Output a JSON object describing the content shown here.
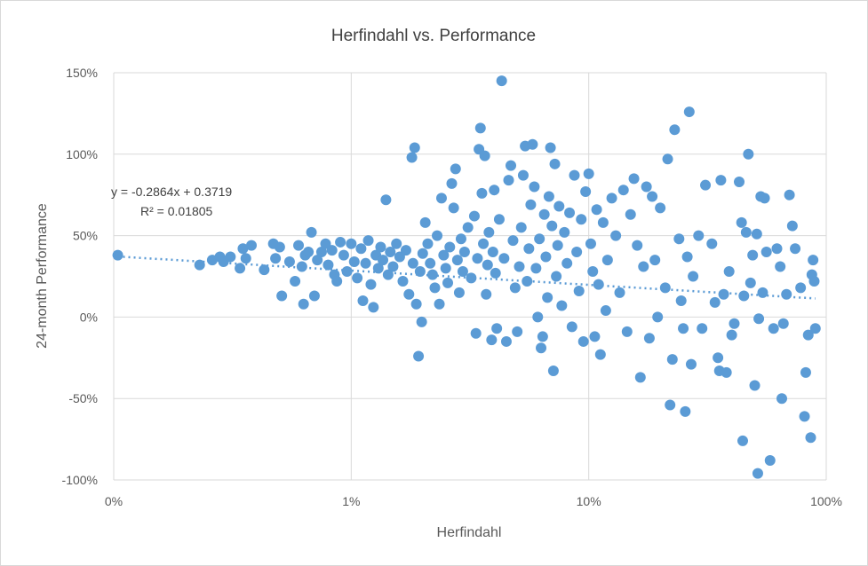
{
  "chart_data": {
    "type": "scatter",
    "title": "Herfindahl vs. Performance",
    "xlabel": "Herfindahl",
    "ylabel": "24-month Performance",
    "x_scale": "log",
    "xlim": [
      0.001,
      1
    ],
    "ylim": [
      -1,
      1.5
    ],
    "x_ticks": [
      0.001,
      0.01,
      0.1,
      1
    ],
    "x_tick_labels": [
      "0%",
      "1%",
      "10%",
      "100%"
    ],
    "y_ticks": [
      -1,
      -0.5,
      0,
      0.5,
      1,
      1.5
    ],
    "y_tick_labels": [
      "-100%",
      "-50%",
      "0%",
      "50%",
      "100%",
      "150%"
    ],
    "grid": true,
    "legend": "none",
    "colors": {
      "points": "#5b9bd5",
      "trendline": "#5b9bd5"
    },
    "trendline": {
      "type": "linear",
      "slope": -0.2864,
      "intercept": 0.3719,
      "equation": "y = -0.2864x + 0.3719",
      "r_squared": "R² = 0.01805"
    },
    "series": [
      {
        "points": [
          [
            0.00104,
            0.38
          ],
          [
            0.0023,
            0.32
          ],
          [
            0.0026,
            0.35
          ],
          [
            0.0028,
            0.37
          ],
          [
            0.0029,
            0.34
          ],
          [
            0.0031,
            0.37
          ],
          [
            0.0034,
            0.3
          ],
          [
            0.0035,
            0.42
          ],
          [
            0.0036,
            0.36
          ],
          [
            0.0038,
            0.44
          ],
          [
            0.0043,
            0.29
          ],
          [
            0.0047,
            0.45
          ],
          [
            0.0048,
            0.36
          ],
          [
            0.005,
            0.43
          ],
          [
            0.0051,
            0.13
          ],
          [
            0.0055,
            0.34
          ],
          [
            0.0058,
            0.22
          ],
          [
            0.006,
            0.44
          ],
          [
            0.0062,
            0.31
          ],
          [
            0.0063,
            0.08
          ],
          [
            0.0064,
            0.38
          ],
          [
            0.0066,
            0.4
          ],
          [
            0.0068,
            0.52
          ],
          [
            0.007,
            0.13
          ],
          [
            0.0072,
            0.35
          ],
          [
            0.0075,
            0.4
          ],
          [
            0.0078,
            0.45
          ],
          [
            0.008,
            0.32
          ],
          [
            0.0083,
            0.41
          ],
          [
            0.0085,
            0.26
          ],
          [
            0.0087,
            0.22
          ],
          [
            0.009,
            0.46
          ],
          [
            0.0093,
            0.38
          ],
          [
            0.0096,
            0.28
          ],
          [
            0.01,
            0.45
          ],
          [
            0.0103,
            0.34
          ],
          [
            0.0106,
            0.24
          ],
          [
            0.011,
            0.42
          ],
          [
            0.0112,
            0.1
          ],
          [
            0.0115,
            0.33
          ],
          [
            0.0118,
            0.47
          ],
          [
            0.0121,
            0.2
          ],
          [
            0.0124,
            0.06
          ],
          [
            0.0127,
            0.38
          ],
          [
            0.013,
            0.3
          ],
          [
            0.0133,
            0.43
          ],
          [
            0.0136,
            0.35
          ],
          [
            0.014,
            0.72
          ],
          [
            0.0143,
            0.26
          ],
          [
            0.0146,
            0.4
          ],
          [
            0.015,
            0.31
          ],
          [
            0.0155,
            0.45
          ],
          [
            0.016,
            0.37
          ],
          [
            0.0165,
            0.22
          ],
          [
            0.017,
            0.41
          ],
          [
            0.0175,
            0.14
          ],
          [
            0.018,
            0.98
          ],
          [
            0.0182,
            0.33
          ],
          [
            0.0185,
            1.04
          ],
          [
            0.0188,
            0.08
          ],
          [
            0.0192,
            -0.24
          ],
          [
            0.0195,
            0.28
          ],
          [
            0.0198,
            -0.03
          ],
          [
            0.02,
            0.39
          ],
          [
            0.0205,
            0.58
          ],
          [
            0.021,
            0.45
          ],
          [
            0.0215,
            0.33
          ],
          [
            0.022,
            0.26
          ],
          [
            0.0225,
            0.18
          ],
          [
            0.023,
            0.5
          ],
          [
            0.0235,
            0.08
          ],
          [
            0.024,
            0.73
          ],
          [
            0.0245,
            0.38
          ],
          [
            0.025,
            0.3
          ],
          [
            0.0255,
            0.21
          ],
          [
            0.026,
            0.43
          ],
          [
            0.0265,
            0.82
          ],
          [
            0.027,
            0.67
          ],
          [
            0.0275,
            0.91
          ],
          [
            0.028,
            0.35
          ],
          [
            0.0285,
            0.15
          ],
          [
            0.029,
            0.48
          ],
          [
            0.0295,
            0.28
          ],
          [
            0.03,
            0.4
          ],
          [
            0.031,
            0.55
          ],
          [
            0.032,
            0.24
          ],
          [
            0.033,
            0.62
          ],
          [
            0.0335,
            -0.1
          ],
          [
            0.034,
            0.36
          ],
          [
            0.0345,
            1.03
          ],
          [
            0.035,
            1.16
          ],
          [
            0.0355,
            0.76
          ],
          [
            0.036,
            0.45
          ],
          [
            0.0365,
            0.99
          ],
          [
            0.037,
            0.14
          ],
          [
            0.0375,
            0.32
          ],
          [
            0.038,
            0.52
          ],
          [
            0.039,
            -0.14
          ],
          [
            0.0395,
            0.4
          ],
          [
            0.04,
            0.78
          ],
          [
            0.0405,
            0.27
          ],
          [
            0.041,
            -0.07
          ],
          [
            0.042,
            0.6
          ],
          [
            0.043,
            1.45
          ],
          [
            0.044,
            0.36
          ],
          [
            0.045,
            -0.15
          ],
          [
            0.046,
            0.84
          ],
          [
            0.047,
            0.93
          ],
          [
            0.048,
            0.47
          ],
          [
            0.049,
            0.18
          ],
          [
            0.05,
            -0.09
          ],
          [
            0.051,
            0.31
          ],
          [
            0.052,
            0.55
          ],
          [
            0.053,
            0.87
          ],
          [
            0.054,
            1.05
          ],
          [
            0.055,
            0.22
          ],
          [
            0.056,
            0.42
          ],
          [
            0.057,
            0.69
          ],
          [
            0.058,
            1.06
          ],
          [
            0.059,
            0.8
          ],
          [
            0.06,
            0.3
          ],
          [
            0.061,
            0.0
          ],
          [
            0.062,
            0.48
          ],
          [
            0.063,
            -0.19
          ],
          [
            0.064,
            -0.12
          ],
          [
            0.065,
            0.63
          ],
          [
            0.066,
            0.37
          ],
          [
            0.067,
            0.12
          ],
          [
            0.068,
            0.74
          ],
          [
            0.069,
            1.04
          ],
          [
            0.07,
            0.56
          ],
          [
            0.071,
            -0.33
          ],
          [
            0.072,
            0.94
          ],
          [
            0.073,
            0.25
          ],
          [
            0.074,
            0.44
          ],
          [
            0.075,
            0.68
          ],
          [
            0.077,
            0.07
          ],
          [
            0.079,
            0.52
          ],
          [
            0.081,
            0.33
          ],
          [
            0.083,
            0.64
          ],
          [
            0.085,
            -0.06
          ],
          [
            0.087,
            0.87
          ],
          [
            0.089,
            0.4
          ],
          [
            0.091,
            0.16
          ],
          [
            0.093,
            0.6
          ],
          [
            0.095,
            -0.15
          ],
          [
            0.097,
            0.77
          ],
          [
            0.1,
            0.88
          ],
          [
            0.102,
            0.45
          ],
          [
            0.104,
            0.28
          ],
          [
            0.106,
            -0.12
          ],
          [
            0.108,
            0.66
          ],
          [
            0.11,
            0.2
          ],
          [
            0.112,
            -0.23
          ],
          [
            0.115,
            0.58
          ],
          [
            0.118,
            0.04
          ],
          [
            0.12,
            0.35
          ],
          [
            0.125,
            0.73
          ],
          [
            0.13,
            0.5
          ],
          [
            0.135,
            0.15
          ],
          [
            0.14,
            0.78
          ],
          [
            0.145,
            -0.09
          ],
          [
            0.15,
            0.63
          ],
          [
            0.155,
            0.85
          ],
          [
            0.16,
            0.44
          ],
          [
            0.165,
            -0.37
          ],
          [
            0.17,
            0.31
          ],
          [
            0.175,
            0.8
          ],
          [
            0.18,
            -0.13
          ],
          [
            0.185,
            0.74
          ],
          [
            0.19,
            0.35
          ],
          [
            0.195,
            0.0
          ],
          [
            0.2,
            0.67
          ],
          [
            0.21,
            0.18
          ],
          [
            0.215,
            0.97
          ],
          [
            0.22,
            -0.54
          ],
          [
            0.225,
            -0.26
          ],
          [
            0.23,
            1.15
          ],
          [
            0.24,
            0.48
          ],
          [
            0.245,
            0.1
          ],
          [
            0.25,
            -0.07
          ],
          [
            0.255,
            -0.58
          ],
          [
            0.26,
            0.37
          ],
          [
            0.265,
            1.26
          ],
          [
            0.27,
            -0.29
          ],
          [
            0.275,
            0.25
          ],
          [
            0.29,
            0.5
          ],
          [
            0.3,
            -0.07
          ],
          [
            0.31,
            0.81
          ],
          [
            0.33,
            0.45
          ],
          [
            0.34,
            0.09
          ],
          [
            0.35,
            -0.25
          ],
          [
            0.355,
            -0.33
          ],
          [
            0.36,
            0.84
          ],
          [
            0.37,
            0.14
          ],
          [
            0.38,
            -0.34
          ],
          [
            0.39,
            0.28
          ],
          [
            0.4,
            -0.11
          ],
          [
            0.41,
            -0.04
          ],
          [
            0.43,
            0.83
          ],
          [
            0.44,
            0.58
          ],
          [
            0.445,
            -0.76
          ],
          [
            0.45,
            0.13
          ],
          [
            0.46,
            0.52
          ],
          [
            0.47,
            1.0
          ],
          [
            0.48,
            0.21
          ],
          [
            0.49,
            0.38
          ],
          [
            0.5,
            -0.42
          ],
          [
            0.51,
            0.51
          ],
          [
            0.515,
            -0.96
          ],
          [
            0.52,
            -0.01
          ],
          [
            0.53,
            0.74
          ],
          [
            0.54,
            0.15
          ],
          [
            0.55,
            0.73
          ],
          [
            0.56,
            0.4
          ],
          [
            0.58,
            -0.88
          ],
          [
            0.6,
            -0.07
          ],
          [
            0.62,
            0.42
          ],
          [
            0.64,
            0.31
          ],
          [
            0.65,
            -0.5
          ],
          [
            0.66,
            -0.04
          ],
          [
            0.68,
            0.14
          ],
          [
            0.7,
            0.75
          ],
          [
            0.72,
            0.56
          ],
          [
            0.74,
            0.42
          ],
          [
            0.78,
            0.18
          ],
          [
            0.81,
            -0.61
          ],
          [
            0.82,
            -0.34
          ],
          [
            0.84,
            -0.11
          ],
          [
            0.86,
            -0.74
          ],
          [
            0.87,
            0.26
          ],
          [
            0.88,
            0.35
          ],
          [
            0.89,
            0.22
          ],
          [
            0.9,
            -0.07
          ]
        ]
      }
    ]
  }
}
